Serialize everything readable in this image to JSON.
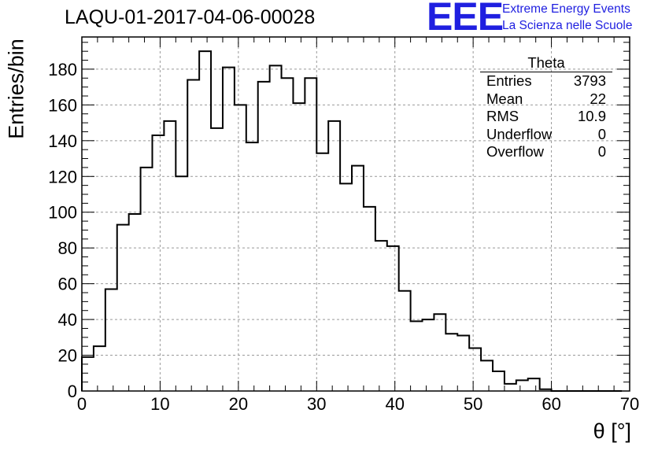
{
  "title": "LAQU-01-2017-04-06-00028",
  "logo": {
    "mark": "EEE",
    "line1": "Extreme Energy Events",
    "line2": "La Scienza nelle Scuole",
    "color": "#1f1fe0"
  },
  "stats_box": {
    "title": "Theta",
    "rows": [
      {
        "label": "Entries",
        "value": "3793"
      },
      {
        "label": "Mean",
        "value": "22"
      },
      {
        "label": "RMS",
        "value": "10.9"
      },
      {
        "label": "Underflow",
        "value": "0"
      },
      {
        "label": "Overflow",
        "value": "0"
      }
    ]
  },
  "chart_data": {
    "type": "bar",
    "style": "step-histogram",
    "title": "LAQU-01-2017-04-06-00028",
    "xlabel": "θ [°]",
    "ylabel": "Entries/bin",
    "xlim": [
      0,
      70
    ],
    "ylim": [
      0,
      198
    ],
    "bin_width": 1.5,
    "x_ticks": [
      0,
      10,
      20,
      30,
      40,
      50,
      60,
      70
    ],
    "y_ticks": [
      0,
      20,
      40,
      60,
      80,
      100,
      120,
      140,
      160,
      180
    ],
    "grid": true,
    "values": [
      19,
      25,
      57,
      93,
      99,
      125,
      143,
      151,
      120,
      174,
      190,
      147,
      181,
      160,
      139,
      173,
      182,
      175,
      161,
      175,
      133,
      151,
      116,
      126,
      103,
      84,
      81,
      56,
      39,
      40,
      43,
      32,
      31,
      24,
      17,
      11,
      4,
      6,
      7,
      1,
      0,
      0,
      0,
      0,
      0,
      0
    ]
  }
}
